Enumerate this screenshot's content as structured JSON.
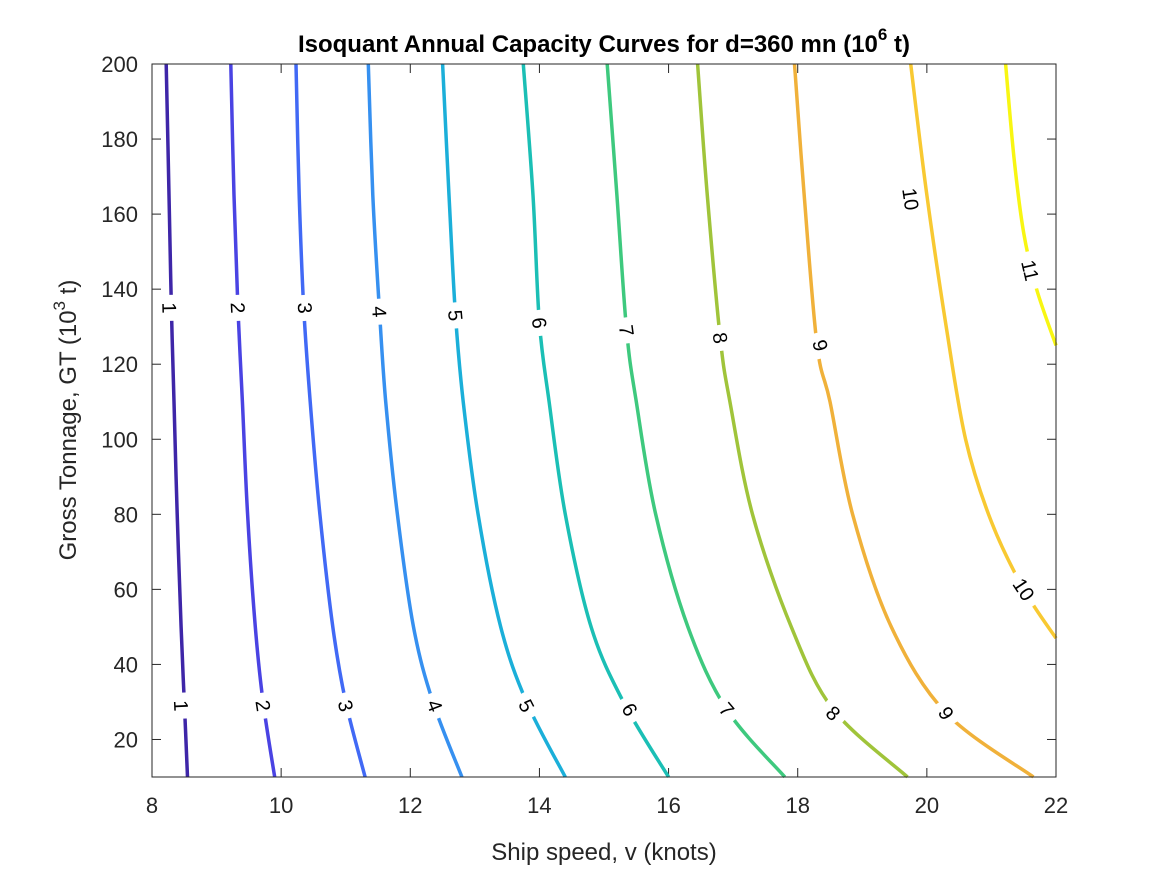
{
  "chart_data": {
    "type": "contour",
    "title": {
      "main": "Isoquant Annual Capacity Curves for d=360 mn (10",
      "sup": "6",
      "end": " t)"
    },
    "xlabel": "Ship speed, v (knots)",
    "ylabel": {
      "main": "Gross Tonnage, GT (10",
      "sup": "3",
      "end": " t)"
    },
    "xlim": [
      8,
      22
    ],
    "ylim": [
      10,
      200
    ],
    "xticks": [
      8,
      10,
      12,
      14,
      16,
      18,
      20,
      22
    ],
    "yticks": [
      20,
      40,
      60,
      80,
      100,
      120,
      140,
      160,
      180,
      200
    ],
    "xtick_labels": [
      "8",
      "10",
      "12",
      "14",
      "16",
      "18",
      "20",
      "22"
    ],
    "ytick_labels": [
      "20",
      "40",
      "60",
      "80",
      "100",
      "120",
      "140",
      "160",
      "180",
      "200"
    ],
    "series": [
      {
        "name": "1",
        "level": 1,
        "color": "#3e26a8",
        "points": [
          [
            8.55,
            10
          ],
          [
            8.5,
            30
          ],
          [
            8.45,
            50
          ],
          [
            8.39,
            80
          ],
          [
            8.34,
            110
          ],
          [
            8.3,
            135
          ],
          [
            8.27,
            160
          ],
          [
            8.22,
            200
          ]
        ],
        "labels": [
          {
            "text": "1",
            "x": 8.45,
            "y": 29
          },
          {
            "text": "1",
            "x": 8.27,
            "y": 135
          }
        ]
      },
      {
        "name": "2",
        "level": 2,
        "color": "#4a43e3",
        "points": [
          [
            9.9,
            10
          ],
          [
            9.72,
            30
          ],
          [
            9.6,
            50
          ],
          [
            9.48,
            80
          ],
          [
            9.4,
            110
          ],
          [
            9.33,
            135
          ],
          [
            9.27,
            165
          ],
          [
            9.22,
            200
          ]
        ],
        "labels": [
          {
            "text": "2",
            "x": 9.72,
            "y": 29
          },
          {
            "text": "2",
            "x": 9.33,
            "y": 135
          }
        ]
      },
      {
        "name": "3",
        "level": 3,
        "color": "#4169f5",
        "points": [
          [
            11.3,
            10
          ],
          [
            11.0,
            30
          ],
          [
            10.8,
            50
          ],
          [
            10.6,
            80
          ],
          [
            10.45,
            110
          ],
          [
            10.35,
            135
          ],
          [
            10.28,
            165
          ],
          [
            10.23,
            200
          ]
        ],
        "labels": [
          {
            "text": "3",
            "x": 11.0,
            "y": 29
          },
          {
            "text": "3",
            "x": 10.37,
            "y": 135
          }
        ]
      },
      {
        "name": "4",
        "level": 4,
        "color": "#3690f0",
        "points": [
          [
            12.8,
            10
          ],
          [
            12.35,
            30
          ],
          [
            12.05,
            50
          ],
          [
            11.8,
            80
          ],
          [
            11.62,
            110
          ],
          [
            11.52,
            135
          ],
          [
            11.42,
            165
          ],
          [
            11.35,
            200
          ]
        ],
        "labels": [
          {
            "text": "4",
            "x": 12.38,
            "y": 29
          },
          {
            "text": "4",
            "x": 11.52,
            "y": 134
          }
        ]
      },
      {
        "name": "5",
        "level": 5,
        "color": "#1bafd9",
        "points": [
          [
            14.4,
            10
          ],
          [
            13.8,
            30
          ],
          [
            13.4,
            50
          ],
          [
            13.05,
            80
          ],
          [
            12.82,
            110
          ],
          [
            12.7,
            133
          ],
          [
            12.6,
            165
          ],
          [
            12.5,
            200
          ]
        ],
        "labels": [
          {
            "text": "5",
            "x": 13.8,
            "y": 29
          },
          {
            "text": "5",
            "x": 12.7,
            "y": 133
          }
        ]
      },
      {
        "name": "6",
        "level": 6,
        "color": "#1bbfb5",
        "points": [
          [
            16.0,
            10
          ],
          [
            15.3,
            30
          ],
          [
            14.8,
            50
          ],
          [
            14.4,
            80
          ],
          [
            14.15,
            110
          ],
          [
            14.0,
            131
          ],
          [
            13.9,
            165
          ],
          [
            13.75,
            200
          ]
        ],
        "labels": [
          {
            "text": "6",
            "x": 15.4,
            "y": 28
          },
          {
            "text": "6",
            "x": 14.0,
            "y": 131
          }
        ]
      },
      {
        "name": "7",
        "level": 7,
        "color": "#3ec97e",
        "points": [
          [
            17.8,
            10
          ],
          [
            16.9,
            28
          ],
          [
            16.3,
            50
          ],
          [
            15.8,
            80
          ],
          [
            15.5,
            110
          ],
          [
            15.35,
            129
          ],
          [
            15.2,
            165
          ],
          [
            15.05,
            200
          ]
        ],
        "labels": [
          {
            "text": "7",
            "x": 16.9,
            "y": 28
          },
          {
            "text": "7",
            "x": 15.35,
            "y": 129
          }
        ]
      },
      {
        "name": "8",
        "level": 8,
        "color": "#a0c43a",
        "points": [
          [
            19.7,
            10
          ],
          [
            18.55,
            28
          ],
          [
            17.9,
            50
          ],
          [
            17.3,
            80
          ],
          [
            16.95,
            110
          ],
          [
            16.8,
            127
          ],
          [
            16.6,
            165
          ],
          [
            16.45,
            200
          ]
        ],
        "labels": [
          {
            "text": "8",
            "x": 18.55,
            "y": 27
          },
          {
            "text": "8",
            "x": 16.8,
            "y": 127
          }
        ]
      },
      {
        "name": "9",
        "level": 9,
        "color": "#f0b13a",
        "points": [
          [
            21.65,
            10
          ],
          [
            20.3,
            27
          ],
          [
            19.45,
            50
          ],
          [
            18.85,
            80
          ],
          [
            18.5,
            110
          ],
          [
            18.3,
            125
          ],
          [
            18.1,
            165
          ],
          [
            17.95,
            200
          ]
        ],
        "labels": [
          {
            "text": "9",
            "x": 20.3,
            "y": 27
          },
          {
            "text": "9",
            "x": 18.35,
            "y": 125
          }
        ]
      },
      {
        "name": "10",
        "level": 10,
        "color": "#f8c932",
        "points": [
          [
            22.0,
            47
          ],
          [
            21.5,
            60
          ],
          [
            21.0,
            78
          ],
          [
            20.6,
            100
          ],
          [
            20.3,
            130
          ],
          [
            20.0,
            165
          ],
          [
            19.75,
            200
          ]
        ],
        "labels": [
          {
            "text": "10",
            "x": 21.5,
            "y": 60
          },
          {
            "text": "10",
            "x": 19.75,
            "y": 164
          }
        ]
      },
      {
        "name": "11",
        "level": 11,
        "color": "#f8f612",
        "points": [
          [
            22.0,
            125
          ],
          [
            21.7,
            140
          ],
          [
            21.5,
            155
          ],
          [
            21.35,
            175
          ],
          [
            21.22,
            200
          ]
        ],
        "labels": [
          {
            "text": "11",
            "x": 21.6,
            "y": 145
          }
        ]
      }
    ]
  }
}
